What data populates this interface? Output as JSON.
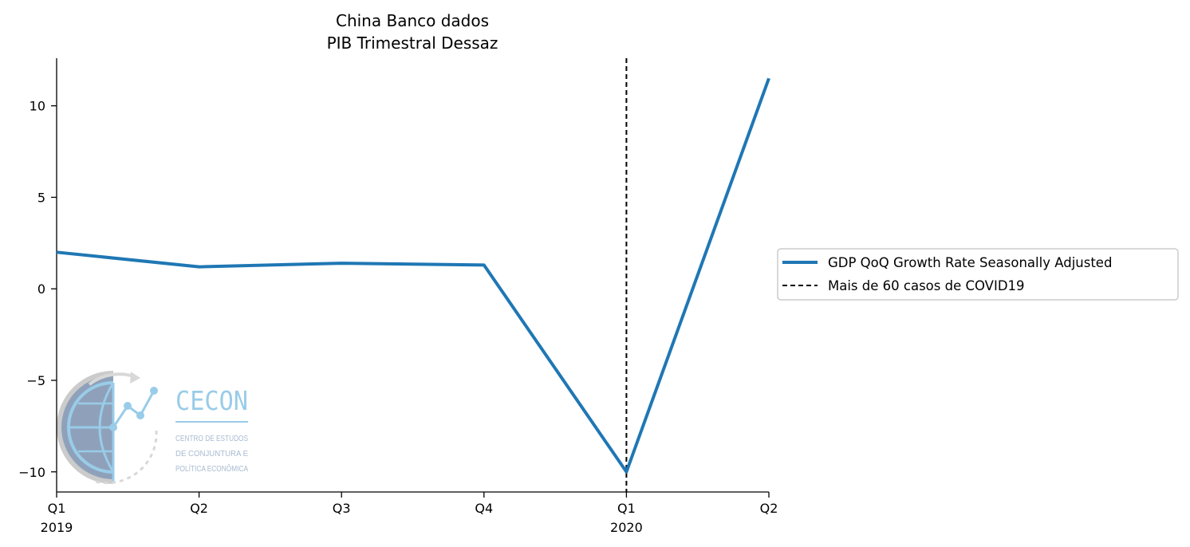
{
  "chart_data": {
    "type": "line",
    "title": "China Banco dados",
    "subtitle": "PIB Trimestral Dessaz",
    "x": [
      "2019-Q1",
      "2019-Q2",
      "2019-Q3",
      "2019-Q4",
      "2020-Q1",
      "2020-Q2"
    ],
    "x_tick_labels": [
      {
        "quarter": "Q1",
        "year": "2019"
      },
      {
        "quarter": "Q2",
        "year": ""
      },
      {
        "quarter": "Q3",
        "year": ""
      },
      {
        "quarter": "Q4",
        "year": ""
      },
      {
        "quarter": "Q1",
        "year": "2020"
      },
      {
        "quarter": "Q2",
        "year": ""
      }
    ],
    "series": [
      {
        "name": "GDP QoQ Growth Rate Seasonally Adjusted",
        "values": [
          2.0,
          1.2,
          1.4,
          1.3,
          -10.0,
          11.5
        ],
        "color": "#1f77b4"
      }
    ],
    "vline": {
      "x": "2020-Q1",
      "label": "Mais de 60 casos de COVID19",
      "color": "#000000",
      "style": "dashed"
    },
    "yticks": [
      -10,
      -5,
      0,
      5,
      10
    ],
    "ytick_labels": [
      "−10",
      "−5",
      "0",
      "5",
      "10"
    ],
    "ylim": [
      -11.1,
      12.6
    ],
    "xlabel": "",
    "ylabel": "",
    "grid": false,
    "legend_position": "right, outside plot"
  },
  "logo": {
    "name": "CECON",
    "lines": [
      "CENTRO DE ESTUDOS",
      "DE CONJUNTURA E",
      "POLÍTICA ECONÔMICA"
    ]
  }
}
